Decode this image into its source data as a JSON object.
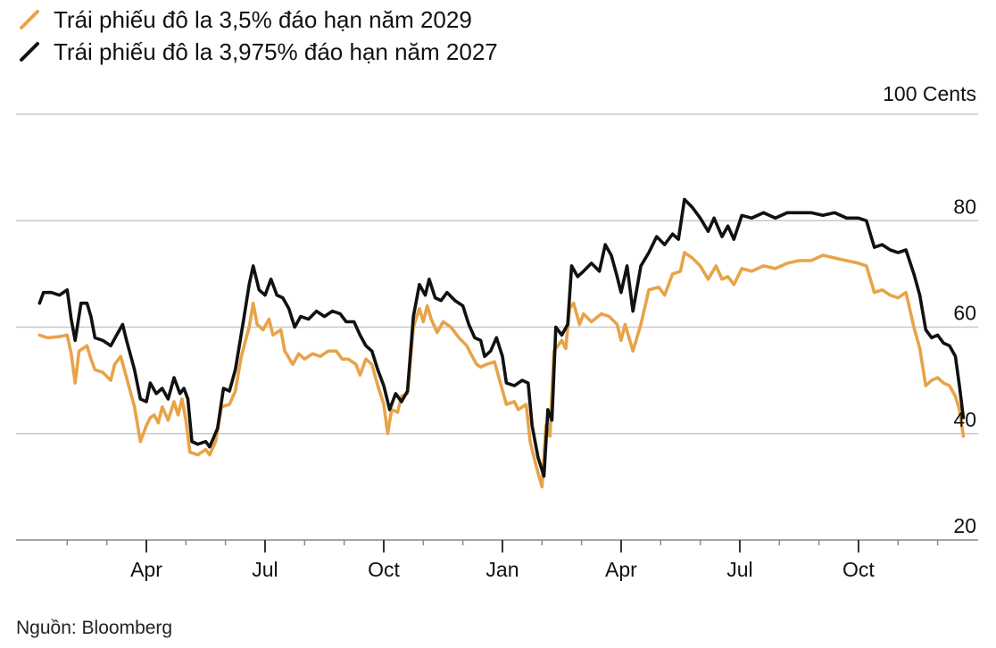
{
  "chart_data": {
    "type": "line",
    "title": "",
    "y_unit_label": "100 Cents",
    "ylim": [
      20,
      100
    ],
    "yticks": [
      20,
      40,
      60,
      80
    ],
    "x_range": [
      0,
      24.2
    ],
    "x_month_labels": [
      {
        "label": "Apr",
        "x": 3
      },
      {
        "label": "Jul",
        "x": 6
      },
      {
        "label": "Oct",
        "x": 9
      },
      {
        "label": "Jan",
        "x": 12
      },
      {
        "label": "Apr",
        "x": 15
      },
      {
        "label": "Jul",
        "x": 18
      },
      {
        "label": "Oct",
        "x": 21
      }
    ],
    "x_minor_ticks": [
      1,
      2,
      4,
      5,
      7,
      8,
      10,
      11,
      13,
      14,
      16,
      17,
      19,
      20,
      22,
      23
    ],
    "x_note": "x in months from first month start",
    "series": [
      {
        "name": "Trái phiếu đô la 3,5% đáo hạn năm 2029",
        "color": "#e8a349",
        "points": [
          [
            0.3,
            58.5
          ],
          [
            0.5,
            58.0
          ],
          [
            0.8,
            58.2
          ],
          [
            1.0,
            58.5
          ],
          [
            1.1,
            55.0
          ],
          [
            1.2,
            49.5
          ],
          [
            1.3,
            55.5
          ],
          [
            1.5,
            56.5
          ],
          [
            1.6,
            54.0
          ],
          [
            1.7,
            52.0
          ],
          [
            1.9,
            51.5
          ],
          [
            2.1,
            50.0
          ],
          [
            2.2,
            53.0
          ],
          [
            2.35,
            54.5
          ],
          [
            2.5,
            50.5
          ],
          [
            2.7,
            45.0
          ],
          [
            2.85,
            38.5
          ],
          [
            3.0,
            41.5
          ],
          [
            3.1,
            43.0
          ],
          [
            3.2,
            43.5
          ],
          [
            3.3,
            42.0
          ],
          [
            3.4,
            45.0
          ],
          [
            3.55,
            42.5
          ],
          [
            3.7,
            46.0
          ],
          [
            3.8,
            43.5
          ],
          [
            3.9,
            46.5
          ],
          [
            4.0,
            42.5
          ],
          [
            4.1,
            36.5
          ],
          [
            4.3,
            36.0
          ],
          [
            4.5,
            37.0
          ],
          [
            4.6,
            36.0
          ],
          [
            4.75,
            38.5
          ],
          [
            4.9,
            45.0
          ],
          [
            5.1,
            45.5
          ],
          [
            5.25,
            48.0
          ],
          [
            5.4,
            54.5
          ],
          [
            5.6,
            60.0
          ],
          [
            5.7,
            64.5
          ],
          [
            5.8,
            60.5
          ],
          [
            5.95,
            59.5
          ],
          [
            6.1,
            61.5
          ],
          [
            6.2,
            58.5
          ],
          [
            6.4,
            59.5
          ],
          [
            6.5,
            55.5
          ],
          [
            6.7,
            53.0
          ],
          [
            6.85,
            55.0
          ],
          [
            7.0,
            54.0
          ],
          [
            7.2,
            55.0
          ],
          [
            7.4,
            54.5
          ],
          [
            7.6,
            55.5
          ],
          [
            7.8,
            55.5
          ],
          [
            7.95,
            54.0
          ],
          [
            8.1,
            54.0
          ],
          [
            8.3,
            53.0
          ],
          [
            8.4,
            51.0
          ],
          [
            8.55,
            54.0
          ],
          [
            8.7,
            53.0
          ],
          [
            8.85,
            49.0
          ],
          [
            9.0,
            45.5
          ],
          [
            9.1,
            40.0
          ],
          [
            9.2,
            44.5
          ],
          [
            9.35,
            44.0
          ],
          [
            9.45,
            47.0
          ],
          [
            9.6,
            47.5
          ],
          [
            9.75,
            60.0
          ],
          [
            9.9,
            63.5
          ],
          [
            10.0,
            61.0
          ],
          [
            10.1,
            64.0
          ],
          [
            10.2,
            61.5
          ],
          [
            10.35,
            59.0
          ],
          [
            10.5,
            61.0
          ],
          [
            10.7,
            60.0
          ],
          [
            10.9,
            58.0
          ],
          [
            11.1,
            56.5
          ],
          [
            11.2,
            55.0
          ],
          [
            11.35,
            53.0
          ],
          [
            11.45,
            52.5
          ],
          [
            11.6,
            53.0
          ],
          [
            11.8,
            53.5
          ],
          [
            11.95,
            49.5
          ],
          [
            12.1,
            45.5
          ],
          [
            12.3,
            46.0
          ],
          [
            12.4,
            44.5
          ],
          [
            12.6,
            45.5
          ],
          [
            12.7,
            38.5
          ],
          [
            12.85,
            34.0
          ],
          [
            13.0,
            30.0
          ],
          [
            13.1,
            41.5
          ],
          [
            13.2,
            39.5
          ],
          [
            13.3,
            55.5
          ],
          [
            13.5,
            57.5
          ],
          [
            13.6,
            56.0
          ],
          [
            13.7,
            63.5
          ],
          [
            13.8,
            64.5
          ],
          [
            13.95,
            60.5
          ],
          [
            14.05,
            62.5
          ],
          [
            14.25,
            61.0
          ],
          [
            14.5,
            62.5
          ],
          [
            14.7,
            62.0
          ],
          [
            14.9,
            60.5
          ],
          [
            15.0,
            57.5
          ],
          [
            15.1,
            60.5
          ],
          [
            15.3,
            55.5
          ],
          [
            15.5,
            60.5
          ],
          [
            15.7,
            67.0
          ],
          [
            15.95,
            67.5
          ],
          [
            16.1,
            66.0
          ],
          [
            16.3,
            70.0
          ],
          [
            16.5,
            70.5
          ],
          [
            16.6,
            74.0
          ],
          [
            16.8,
            73.0
          ],
          [
            17.0,
            71.5
          ],
          [
            17.2,
            69.0
          ],
          [
            17.4,
            71.5
          ],
          [
            17.55,
            69.0
          ],
          [
            17.7,
            69.5
          ],
          [
            17.85,
            68.0
          ],
          [
            18.05,
            71.0
          ],
          [
            18.3,
            70.5
          ],
          [
            18.6,
            71.5
          ],
          [
            18.9,
            71.0
          ],
          [
            19.2,
            72.0
          ],
          [
            19.5,
            72.5
          ],
          [
            19.8,
            72.5
          ],
          [
            20.1,
            73.5
          ],
          [
            20.4,
            73.0
          ],
          [
            20.7,
            72.5
          ],
          [
            21.0,
            72.0
          ],
          [
            21.2,
            71.5
          ],
          [
            21.4,
            66.5
          ],
          [
            21.6,
            67.0
          ],
          [
            21.8,
            66.0
          ],
          [
            22.0,
            65.5
          ],
          [
            22.2,
            66.5
          ],
          [
            22.4,
            60.0
          ],
          [
            22.55,
            56.0
          ],
          [
            22.7,
            49.0
          ],
          [
            22.85,
            50.0
          ],
          [
            23.0,
            50.5
          ],
          [
            23.15,
            49.5
          ],
          [
            23.3,
            49.0
          ],
          [
            23.45,
            47.0
          ],
          [
            23.55,
            44.5
          ],
          [
            23.65,
            39.5
          ]
        ]
      },
      {
        "name": "Trái phiếu đô la 3,975% đáo hạn năm 2027",
        "color": "#111111",
        "points": [
          [
            0.3,
            64.5
          ],
          [
            0.4,
            66.5
          ],
          [
            0.6,
            66.5
          ],
          [
            0.8,
            66.0
          ],
          [
            1.0,
            67.0
          ],
          [
            1.1,
            61.5
          ],
          [
            1.2,
            57.5
          ],
          [
            1.35,
            64.5
          ],
          [
            1.5,
            64.5
          ],
          [
            1.6,
            62.0
          ],
          [
            1.7,
            58.0
          ],
          [
            1.9,
            57.5
          ],
          [
            2.1,
            56.5
          ],
          [
            2.25,
            58.5
          ],
          [
            2.4,
            60.5
          ],
          [
            2.5,
            57.5
          ],
          [
            2.7,
            52.0
          ],
          [
            2.85,
            46.5
          ],
          [
            3.0,
            46.0
          ],
          [
            3.1,
            49.5
          ],
          [
            3.25,
            47.5
          ],
          [
            3.4,
            48.5
          ],
          [
            3.55,
            46.5
          ],
          [
            3.7,
            50.5
          ],
          [
            3.85,
            47.5
          ],
          [
            3.95,
            48.5
          ],
          [
            4.05,
            46.5
          ],
          [
            4.15,
            38.5
          ],
          [
            4.3,
            38.0
          ],
          [
            4.5,
            38.5
          ],
          [
            4.6,
            37.5
          ],
          [
            4.8,
            41.0
          ],
          [
            4.95,
            48.5
          ],
          [
            5.1,
            48.0
          ],
          [
            5.25,
            52.0
          ],
          [
            5.45,
            61.0
          ],
          [
            5.6,
            68.0
          ],
          [
            5.7,
            71.5
          ],
          [
            5.85,
            67.0
          ],
          [
            6.0,
            66.0
          ],
          [
            6.15,
            69.0
          ],
          [
            6.3,
            66.0
          ],
          [
            6.45,
            65.5
          ],
          [
            6.6,
            63.5
          ],
          [
            6.75,
            60.0
          ],
          [
            6.9,
            62.0
          ],
          [
            7.1,
            61.5
          ],
          [
            7.3,
            63.0
          ],
          [
            7.5,
            62.0
          ],
          [
            7.7,
            63.0
          ],
          [
            7.9,
            62.5
          ],
          [
            8.05,
            61.0
          ],
          [
            8.25,
            61.0
          ],
          [
            8.4,
            58.5
          ],
          [
            8.55,
            56.5
          ],
          [
            8.7,
            55.5
          ],
          [
            8.85,
            52.0
          ],
          [
            9.0,
            49.0
          ],
          [
            9.15,
            44.5
          ],
          [
            9.3,
            47.5
          ],
          [
            9.45,
            46.0
          ],
          [
            9.6,
            48.0
          ],
          [
            9.75,
            62.0
          ],
          [
            9.9,
            68.0
          ],
          [
            10.05,
            66.0
          ],
          [
            10.15,
            69.0
          ],
          [
            10.3,
            65.5
          ],
          [
            10.45,
            65.0
          ],
          [
            10.6,
            66.5
          ],
          [
            10.8,
            65.0
          ],
          [
            11.0,
            64.0
          ],
          [
            11.15,
            60.5
          ],
          [
            11.3,
            58.0
          ],
          [
            11.45,
            57.5
          ],
          [
            11.55,
            54.5
          ],
          [
            11.7,
            55.5
          ],
          [
            11.85,
            58.0
          ],
          [
            12.0,
            54.5
          ],
          [
            12.1,
            49.5
          ],
          [
            12.3,
            49.0
          ],
          [
            12.5,
            50.0
          ],
          [
            12.65,
            49.5
          ],
          [
            12.75,
            41.5
          ],
          [
            12.9,
            35.5
          ],
          [
            13.05,
            32.0
          ],
          [
            13.15,
            44.5
          ],
          [
            13.25,
            42.5
          ],
          [
            13.35,
            60.0
          ],
          [
            13.5,
            58.5
          ],
          [
            13.65,
            60.5
          ],
          [
            13.75,
            71.5
          ],
          [
            13.9,
            69.5
          ],
          [
            14.05,
            70.5
          ],
          [
            14.25,
            72.0
          ],
          [
            14.45,
            70.5
          ],
          [
            14.6,
            75.5
          ],
          [
            14.75,
            73.5
          ],
          [
            14.9,
            69.5
          ],
          [
            15.0,
            66.5
          ],
          [
            15.15,
            71.5
          ],
          [
            15.3,
            63.0
          ],
          [
            15.5,
            71.5
          ],
          [
            15.7,
            74.0
          ],
          [
            15.9,
            77.0
          ],
          [
            16.1,
            75.5
          ],
          [
            16.3,
            77.5
          ],
          [
            16.45,
            76.5
          ],
          [
            16.6,
            84.0
          ],
          [
            16.8,
            82.5
          ],
          [
            17.0,
            80.5
          ],
          [
            17.2,
            78.0
          ],
          [
            17.35,
            80.5
          ],
          [
            17.55,
            77.0
          ],
          [
            17.7,
            79.0
          ],
          [
            17.85,
            76.5
          ],
          [
            18.05,
            81.0
          ],
          [
            18.3,
            80.5
          ],
          [
            18.6,
            81.5
          ],
          [
            18.9,
            80.5
          ],
          [
            19.2,
            81.5
          ],
          [
            19.5,
            81.5
          ],
          [
            19.8,
            81.5
          ],
          [
            20.1,
            81.0
          ],
          [
            20.4,
            81.5
          ],
          [
            20.7,
            80.5
          ],
          [
            21.0,
            80.5
          ],
          [
            21.2,
            80.0
          ],
          [
            21.4,
            75.0
          ],
          [
            21.6,
            75.5
          ],
          [
            21.8,
            74.5
          ],
          [
            22.0,
            74.0
          ],
          [
            22.2,
            74.5
          ],
          [
            22.4,
            70.0
          ],
          [
            22.55,
            66.0
          ],
          [
            22.7,
            59.5
          ],
          [
            22.85,
            58.0
          ],
          [
            23.0,
            58.5
          ],
          [
            23.15,
            57.0
          ],
          [
            23.3,
            56.5
          ],
          [
            23.45,
            54.5
          ],
          [
            23.55,
            49.0
          ],
          [
            23.65,
            43.0
          ]
        ]
      }
    ],
    "source": "Nguồn: Bloomberg"
  }
}
